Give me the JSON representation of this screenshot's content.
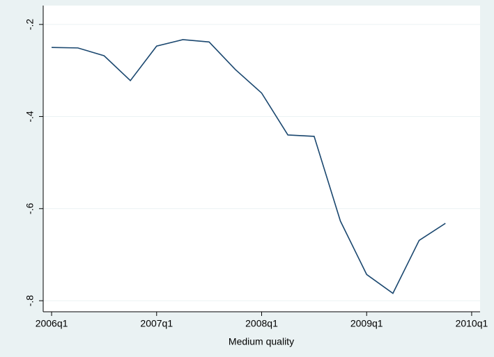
{
  "chart_data": {
    "type": "line",
    "xlabel": "Medium quality",
    "x": [
      2006,
      2006.25,
      2006.5,
      2006.75,
      2007,
      2007.25,
      2007.5,
      2007.75,
      2008,
      2008.25,
      2008.5,
      2008.75,
      2009,
      2009.25,
      2009.5,
      2009.75
    ],
    "series": [
      {
        "color": "#1a476f",
        "values": [
          -0.25,
          -0.251,
          -0.268,
          -0.322,
          -0.247,
          -0.233,
          -0.238,
          -0.298,
          -0.349,
          -0.44,
          -0.443,
          -0.627,
          -0.743,
          -0.784,
          -0.669,
          -0.632
        ]
      }
    ],
    "xlim": [
      2005.92,
      2010.08
    ],
    "xticks": [
      {
        "value": 2006,
        "label": "2006q1"
      },
      {
        "value": 2007,
        "label": "2007q1"
      },
      {
        "value": 2008,
        "label": "2008q1"
      },
      {
        "value": 2009,
        "label": "2009q1"
      },
      {
        "value": 2010,
        "label": "2010q1"
      }
    ],
    "ylim": [
      -0.824,
      -0.159
    ],
    "yticks": [
      {
        "value": -0.2,
        "label": "-.2"
      },
      {
        "value": -0.4,
        "label": "-.4"
      },
      {
        "value": -0.6,
        "label": "-.6"
      },
      {
        "value": -0.8,
        "label": "-.8"
      }
    ],
    "grid": true
  }
}
